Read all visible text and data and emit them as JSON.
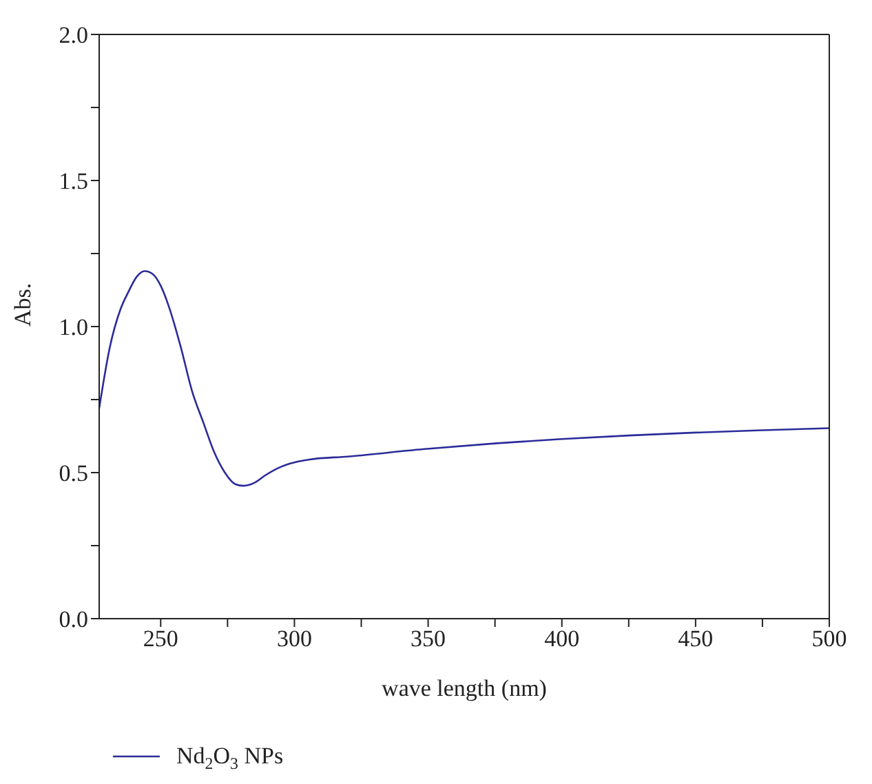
{
  "chart_data": {
    "type": "line",
    "xlabel": "wave length (nm)",
    "ylabel": "Abs.",
    "xlim": [
      227,
      500
    ],
    "xticks": [
      250,
      {
        "value": 275,
        "label": null
      },
      300,
      {
        "value": 325,
        "label": null
      },
      350,
      {
        "value": 375,
        "label": null
      },
      400,
      {
        "value": 425,
        "label": null
      },
      450,
      {
        "value": 475,
        "label": null
      },
      500
    ],
    "ylim": [
      0,
      2
    ],
    "yticks": [
      {
        "value": 0,
        "label": "0.0"
      },
      {
        "value": 0.25,
        "label": null
      },
      0.5,
      {
        "value": 0.75,
        "label": null
      },
      {
        "value": 1,
        "label": "1.0"
      },
      {
        "value": 1.25,
        "label": null
      },
      1.5,
      {
        "value": 1.75,
        "label": null
      },
      {
        "value": 2,
        "label": "2.0"
      }
    ],
    "series": [
      {
        "name": "Nd$_{2}$O$_{3}$ NPs",
        "color": "#2b2b9a",
        "x": [
          227,
          231,
          235,
          238,
          241,
          244,
          247,
          250,
          253,
          257.5,
          261.7,
          266,
          270,
          274,
          278,
          281,
          285,
          289,
          293.8,
          298,
          305.7,
          320,
          348,
          375,
          400,
          425,
          450,
          475,
          500
        ],
        "values": [
          0.72,
          0.93,
          1.06,
          1.12,
          1.17,
          1.19,
          1.18,
          1.14,
          1.07,
          0.93,
          0.78,
          0.67,
          0.57,
          0.5,
          0.46,
          0.455,
          0.465,
          0.49,
          0.515,
          0.53,
          0.545,
          0.555,
          0.58,
          0.6,
          0.615,
          0.627,
          0.637,
          0.645,
          0.652
        ]
      }
    ],
    "grid": false,
    "legend": "bottom left",
    "marker": "none",
    "line_style": "solid"
  }
}
